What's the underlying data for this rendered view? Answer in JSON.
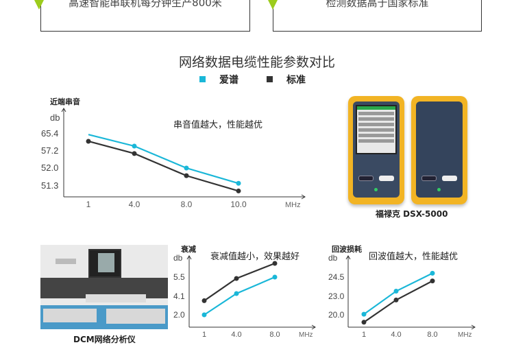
{
  "banners": [
    {
      "text": "高速智能串联机每分钟生产800米"
    },
    {
      "text": "检测数据高于国家标准"
    }
  ],
  "section_title": "网络数据电缆性能参数对比",
  "legend": [
    {
      "label": "爱谱",
      "color": "#1ab7d8"
    },
    {
      "label": "标准",
      "color": "#333333"
    }
  ],
  "colors": {
    "accent_green": "#9ccc1c",
    "aipu": "#1ab7d8",
    "standard": "#333333"
  },
  "device": {
    "caption": "福禄克 DSX-5000"
  },
  "analyzer": {
    "caption": "DCM网络分析仪"
  },
  "chart_data": [
    {
      "type": "line",
      "title": "近端串音",
      "ylabel": "db",
      "xlabel": "MHz",
      "annotation": "串音值越大，性能越优",
      "categories": [
        "1",
        "4.0",
        "8.0",
        "10.0"
      ],
      "yticks": [
        "65.4",
        "57.2",
        "52.0",
        "51.3"
      ],
      "series": [
        {
          "name": "爱谱",
          "values": [
            65.0,
            59.5,
            52.0,
            51.4
          ]
        },
        {
          "name": "标准",
          "values": [
            61.8,
            56.4,
            51.7,
            51.1
          ]
        }
      ],
      "grid": false
    },
    {
      "type": "line",
      "title": "衰减",
      "ylabel": "db",
      "xlabel": "MHz",
      "annotation": "衰减值越小，效果越好",
      "categories": [
        "1",
        "4.0",
        "8.0"
      ],
      "yticks": [
        "5.5",
        "4.1",
        "2.0"
      ],
      "series": [
        {
          "name": "爱谱",
          "values": [
            2.0,
            4.3,
            5.5
          ]
        },
        {
          "name": "标准",
          "values": [
            3.6,
            5.4,
            6.5
          ]
        }
      ],
      "grid": false
    },
    {
      "type": "line",
      "title": "回波损耗",
      "ylabel": "db",
      "xlabel": "MHz",
      "annotation": "回波值越大，性能越优",
      "categories": [
        "1",
        "4.0",
        "8.0"
      ],
      "yticks": [
        "24.5",
        "23.0",
        "20.0"
      ],
      "series": [
        {
          "name": "爱谱",
          "values": [
            20.1,
            23.4,
            24.8
          ]
        },
        {
          "name": "标准",
          "values": [
            18.8,
            22.4,
            24.2
          ]
        }
      ],
      "grid": false
    }
  ]
}
